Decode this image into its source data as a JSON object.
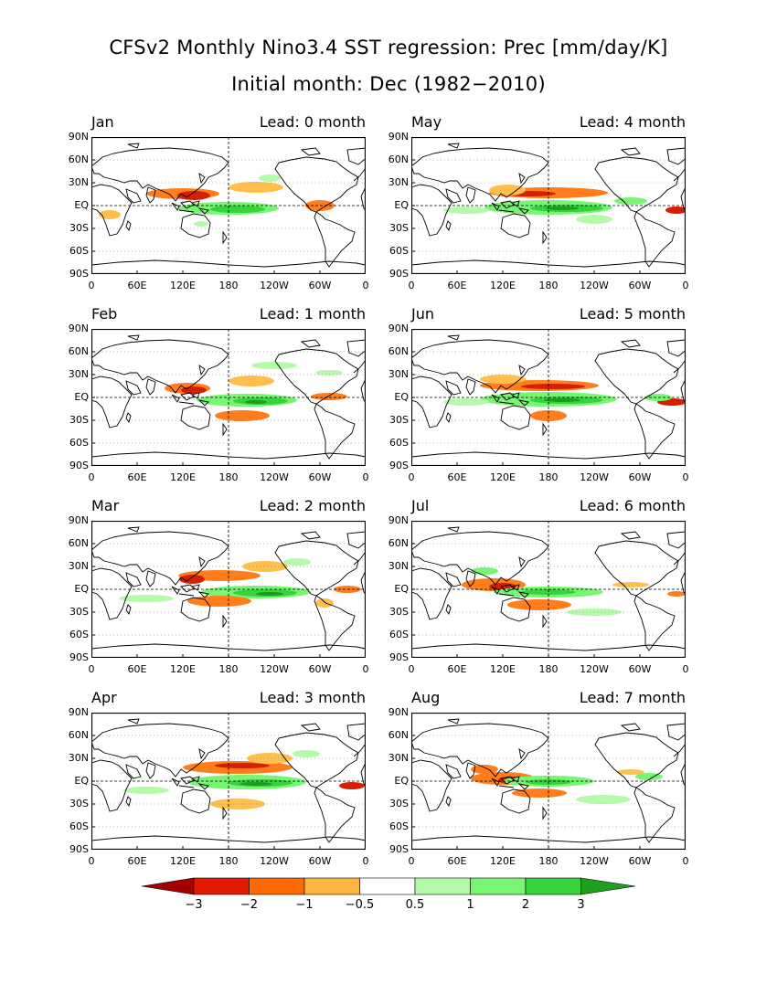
{
  "title": {
    "line1": "CFSv2 Monthly Nino3.4 SST regression: Prec [mm/day/K]",
    "line2": "Initial month: Dec (1982−2010)"
  },
  "panels": [
    {
      "month": "Jan",
      "lead": "Lead: 0 month"
    },
    {
      "month": "May",
      "lead": "Lead: 4 month"
    },
    {
      "month": "Feb",
      "lead": "Lead: 1 month"
    },
    {
      "month": "Jun",
      "lead": "Lead: 5 month"
    },
    {
      "month": "Mar",
      "lead": "Lead: 2 month"
    },
    {
      "month": "Jul",
      "lead": "Lead: 6 month"
    },
    {
      "month": "Apr",
      "lead": "Lead: 3 month"
    },
    {
      "month": "Aug",
      "lead": "Lead: 7 month"
    }
  ],
  "axes": {
    "lat_labels": [
      "90N",
      "60N",
      "30N",
      "EQ",
      "30S",
      "60S",
      "90S"
    ],
    "lon_labels": [
      "0",
      "60E",
      "120E",
      "180",
      "120W",
      "60W",
      "0"
    ]
  },
  "colorbar": {
    "labels": [
      "−3",
      "−2",
      "−1",
      "−0.5",
      "0.5",
      "1",
      "2",
      "3"
    ],
    "colors": [
      "#a50000",
      "#e31a00",
      "#ff6a00",
      "#ffb640",
      "#ffffff",
      "#b4faaa",
      "#78f573",
      "#37d23c",
      "#1ea01e"
    ]
  },
  "map_colors": {
    "dry_strong": "#d42000",
    "dry": "#ff7d1a",
    "dry_weak": "#ffbf4d",
    "wet_weak": "#b4faaa",
    "wet": "#78f573",
    "wet_strong": "#37d23c",
    "wet_max": "#1e9a22"
  }
}
